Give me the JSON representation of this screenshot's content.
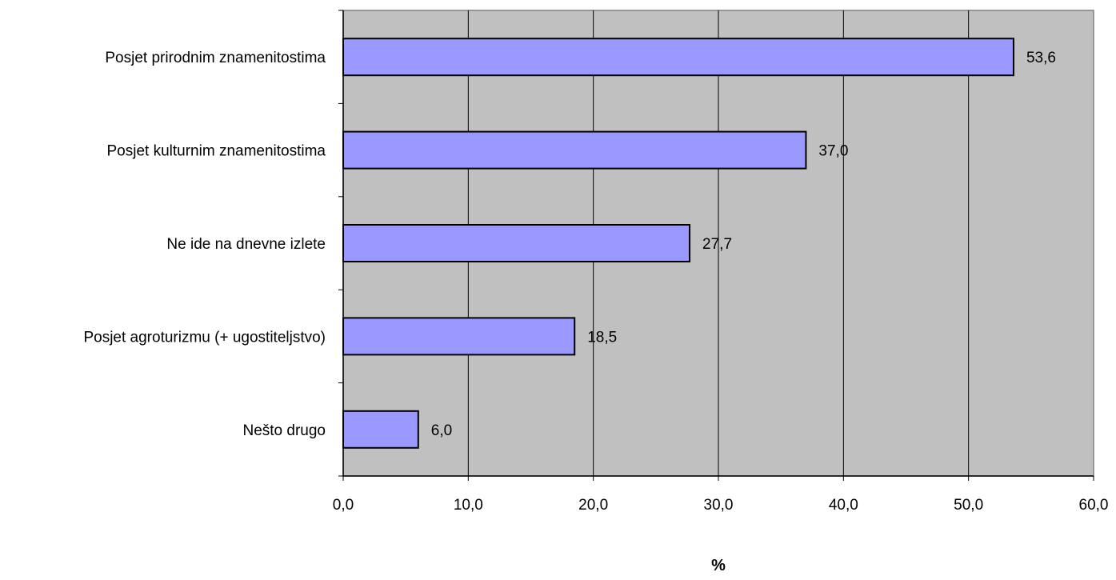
{
  "chart_data": {
    "type": "bar",
    "orientation": "horizontal",
    "categories": [
      "Posjet prirodnim znamenitostima",
      "Posjet kulturnim znamenitostima",
      "Ne ide na dnevne izlete",
      "Posjet agroturizmu (+ ugostiteljstvo)",
      "Nešto drugo"
    ],
    "values": [
      53.6,
      37.0,
      27.7,
      18.5,
      6.0
    ],
    "data_labels": [
      "53,6",
      "37,0",
      "27,7",
      "18,5",
      "6,0"
    ],
    "xlabel": "%",
    "xlim": [
      0,
      60
    ],
    "xticks": [
      0,
      10,
      20,
      30,
      40,
      50,
      60
    ],
    "xtick_labels": [
      "0,0",
      "10,0",
      "20,0",
      "30,0",
      "40,0",
      "50,0",
      "60,0"
    ],
    "grid": "vertical",
    "legend": "none",
    "colors": {
      "plot_background": "#c0c0c0",
      "bar_fill": "#9999ff",
      "bar_stroke": "#000000",
      "gridline": "#000000"
    }
  }
}
